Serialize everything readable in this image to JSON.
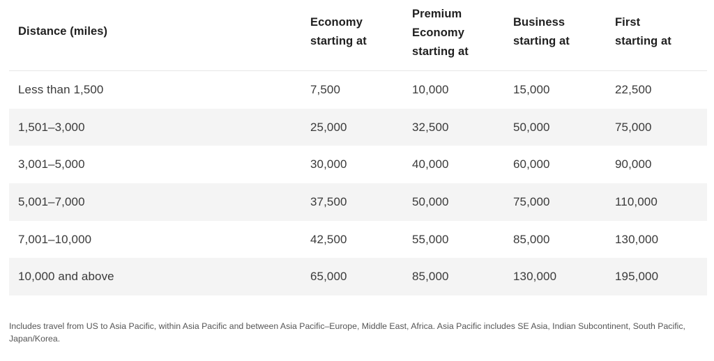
{
  "table": {
    "headers": [
      [
        "Distance (miles)"
      ],
      [
        "Economy",
        "starting at"
      ],
      [
        "Premium",
        "Economy",
        "starting at"
      ],
      [
        "Business",
        "starting at"
      ],
      [
        "First",
        "starting at"
      ]
    ],
    "rows": [
      [
        "Less than 1,500",
        "7,500",
        "10,000",
        "15,000",
        "22,500"
      ],
      [
        "1,501–3,000",
        "25,000",
        "32,500",
        "50,000",
        "75,000"
      ],
      [
        "3,001–5,000",
        "30,000",
        "40,000",
        "60,000",
        "90,000"
      ],
      [
        "5,001–7,000",
        "37,500",
        "50,000",
        "75,000",
        "110,000"
      ],
      [
        "7,001–10,000",
        "42,500",
        "55,000",
        "85,000",
        "130,000"
      ],
      [
        "10,000 and above",
        "65,000",
        "85,000",
        "130,000",
        "195,000"
      ]
    ]
  },
  "footnote": "Includes travel from US to Asia Pacific, within Asia Pacific and between Asia Pacific–Europe, Middle East, Africa. Asia Pacific includes SE Asia, Indian Subcontinent, South Pacific, Japan/Korea.",
  "colors": {
    "stripe": "#f4f4f4",
    "header_text": "#1f1f1f",
    "body_text": "#3a3a3a",
    "footnote_text": "#555555"
  }
}
